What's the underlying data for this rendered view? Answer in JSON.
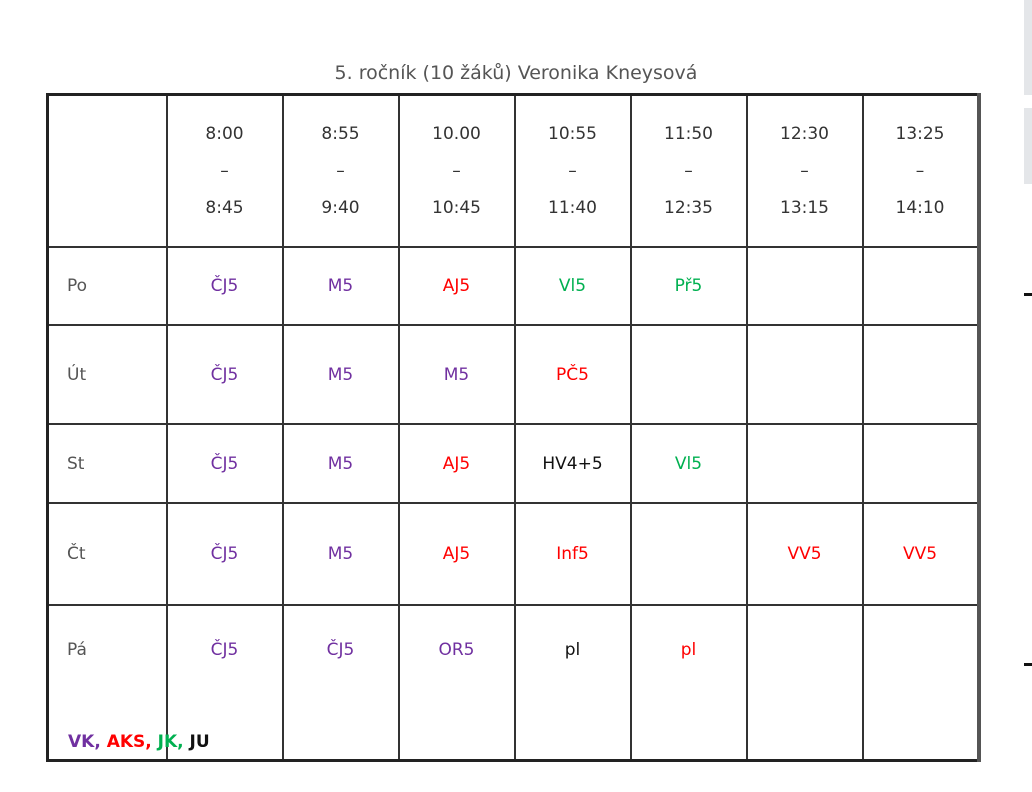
{
  "title": "5. ročník (10 žáků) Veronika Kneysová",
  "colors": {
    "purple": "#7030a0",
    "red": "#ff0000",
    "green": "#00b050",
    "black": "#111111"
  },
  "times": [
    [
      "8:00",
      "–",
      "8:45"
    ],
    [
      "8:55",
      "–",
      "9:40"
    ],
    [
      "10.00",
      "–",
      "10:45"
    ],
    [
      "10:55",
      "–",
      "11:40"
    ],
    [
      "11:50",
      "–",
      "12:35"
    ],
    [
      "12:30",
      "–",
      "13:15"
    ],
    [
      "13:25",
      "–",
      "14:10"
    ]
  ],
  "rows": [
    {
      "day": "Po",
      "cells": [
        {
          "t": "ČJ5",
          "c": "purple"
        },
        {
          "t": "M5",
          "c": "purple"
        },
        {
          "t": "AJ5",
          "c": "red"
        },
        {
          "t": "Vl5",
          "c": "green"
        },
        {
          "t": "Př5",
          "c": "green"
        },
        {
          "t": "",
          "c": "black"
        },
        {
          "t": "",
          "c": "black"
        }
      ]
    },
    {
      "day": "Út",
      "cells": [
        {
          "t": "ČJ5",
          "c": "purple"
        },
        {
          "t": "M5",
          "c": "purple"
        },
        {
          "t": "M5",
          "c": "purple"
        },
        {
          "t": "PČ5",
          "c": "red"
        },
        {
          "t": "",
          "c": "black"
        },
        {
          "t": "",
          "c": "black"
        },
        {
          "t": "",
          "c": "black"
        }
      ]
    },
    {
      "day": "St",
      "cells": [
        {
          "t": "ČJ5",
          "c": "purple"
        },
        {
          "t": "M5",
          "c": "purple"
        },
        {
          "t": "AJ5",
          "c": "red"
        },
        {
          "t": "HV4+5",
          "c": "black"
        },
        {
          "t": "Vl5",
          "c": "green"
        },
        {
          "t": "",
          "c": "black"
        },
        {
          "t": "",
          "c": "black"
        }
      ]
    },
    {
      "day": "Čt",
      "cells": [
        {
          "t": "ČJ5",
          "c": "purple"
        },
        {
          "t": "M5",
          "c": "purple"
        },
        {
          "t": "AJ5",
          "c": "red"
        },
        {
          "t": "Inf5",
          "c": "red"
        },
        {
          "t": "",
          "c": "black"
        },
        {
          "t": "VV5",
          "c": "red"
        },
        {
          "t": "VV5",
          "c": "red"
        }
      ]
    },
    {
      "day": "Pá",
      "cells": [
        {
          "t": "ČJ5",
          "c": "purple"
        },
        {
          "t": "ČJ5",
          "c": "purple"
        },
        {
          "t": "OR5",
          "c": "purple"
        },
        {
          "t": "pl",
          "c": "black"
        },
        {
          "t": "pl",
          "c": "red"
        },
        {
          "t": "",
          "c": "black"
        },
        {
          "t": "",
          "c": "black"
        }
      ]
    }
  ],
  "legend": [
    {
      "t": "VK, ",
      "c": "purple"
    },
    {
      "t": "AKS, ",
      "c": "red"
    },
    {
      "t": "JK, ",
      "c": "green"
    },
    {
      "t": "JU",
      "c": "black"
    }
  ]
}
